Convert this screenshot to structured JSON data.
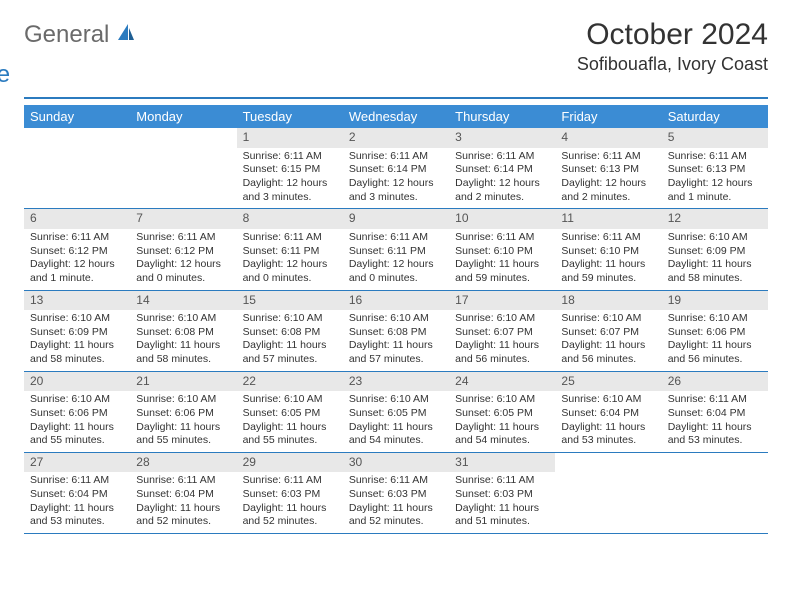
{
  "logo": {
    "word1": "General",
    "word2": "Blue"
  },
  "title": "October 2024",
  "location": "Sofibouafla, Ivory Coast",
  "colors": {
    "accent": "#3b8cd4",
    "divider": "#2b7bbf",
    "dayNumBg": "#e8e8e8",
    "text": "#333333",
    "logoGray": "#6a6a6a",
    "logoBlue": "#2b7bbf",
    "background": "#ffffff"
  },
  "dayNames": [
    "Sunday",
    "Monday",
    "Tuesday",
    "Wednesday",
    "Thursday",
    "Friday",
    "Saturday"
  ],
  "weeks": [
    [
      {
        "num": "",
        "sunrise": "",
        "sunset": "",
        "daylight": ""
      },
      {
        "num": "",
        "sunrise": "",
        "sunset": "",
        "daylight": ""
      },
      {
        "num": "1",
        "sunrise": "Sunrise: 6:11 AM",
        "sunset": "Sunset: 6:15 PM",
        "daylight": "Daylight: 12 hours and 3 minutes."
      },
      {
        "num": "2",
        "sunrise": "Sunrise: 6:11 AM",
        "sunset": "Sunset: 6:14 PM",
        "daylight": "Daylight: 12 hours and 3 minutes."
      },
      {
        "num": "3",
        "sunrise": "Sunrise: 6:11 AM",
        "sunset": "Sunset: 6:14 PM",
        "daylight": "Daylight: 12 hours and 2 minutes."
      },
      {
        "num": "4",
        "sunrise": "Sunrise: 6:11 AM",
        "sunset": "Sunset: 6:13 PM",
        "daylight": "Daylight: 12 hours and 2 minutes."
      },
      {
        "num": "5",
        "sunrise": "Sunrise: 6:11 AM",
        "sunset": "Sunset: 6:13 PM",
        "daylight": "Daylight: 12 hours and 1 minute."
      }
    ],
    [
      {
        "num": "6",
        "sunrise": "Sunrise: 6:11 AM",
        "sunset": "Sunset: 6:12 PM",
        "daylight": "Daylight: 12 hours and 1 minute."
      },
      {
        "num": "7",
        "sunrise": "Sunrise: 6:11 AM",
        "sunset": "Sunset: 6:12 PM",
        "daylight": "Daylight: 12 hours and 0 minutes."
      },
      {
        "num": "8",
        "sunrise": "Sunrise: 6:11 AM",
        "sunset": "Sunset: 6:11 PM",
        "daylight": "Daylight: 12 hours and 0 minutes."
      },
      {
        "num": "9",
        "sunrise": "Sunrise: 6:11 AM",
        "sunset": "Sunset: 6:11 PM",
        "daylight": "Daylight: 12 hours and 0 minutes."
      },
      {
        "num": "10",
        "sunrise": "Sunrise: 6:11 AM",
        "sunset": "Sunset: 6:10 PM",
        "daylight": "Daylight: 11 hours and 59 minutes."
      },
      {
        "num": "11",
        "sunrise": "Sunrise: 6:11 AM",
        "sunset": "Sunset: 6:10 PM",
        "daylight": "Daylight: 11 hours and 59 minutes."
      },
      {
        "num": "12",
        "sunrise": "Sunrise: 6:10 AM",
        "sunset": "Sunset: 6:09 PM",
        "daylight": "Daylight: 11 hours and 58 minutes."
      }
    ],
    [
      {
        "num": "13",
        "sunrise": "Sunrise: 6:10 AM",
        "sunset": "Sunset: 6:09 PM",
        "daylight": "Daylight: 11 hours and 58 minutes."
      },
      {
        "num": "14",
        "sunrise": "Sunrise: 6:10 AM",
        "sunset": "Sunset: 6:08 PM",
        "daylight": "Daylight: 11 hours and 58 minutes."
      },
      {
        "num": "15",
        "sunrise": "Sunrise: 6:10 AM",
        "sunset": "Sunset: 6:08 PM",
        "daylight": "Daylight: 11 hours and 57 minutes."
      },
      {
        "num": "16",
        "sunrise": "Sunrise: 6:10 AM",
        "sunset": "Sunset: 6:08 PM",
        "daylight": "Daylight: 11 hours and 57 minutes."
      },
      {
        "num": "17",
        "sunrise": "Sunrise: 6:10 AM",
        "sunset": "Sunset: 6:07 PM",
        "daylight": "Daylight: 11 hours and 56 minutes."
      },
      {
        "num": "18",
        "sunrise": "Sunrise: 6:10 AM",
        "sunset": "Sunset: 6:07 PM",
        "daylight": "Daylight: 11 hours and 56 minutes."
      },
      {
        "num": "19",
        "sunrise": "Sunrise: 6:10 AM",
        "sunset": "Sunset: 6:06 PM",
        "daylight": "Daylight: 11 hours and 56 minutes."
      }
    ],
    [
      {
        "num": "20",
        "sunrise": "Sunrise: 6:10 AM",
        "sunset": "Sunset: 6:06 PM",
        "daylight": "Daylight: 11 hours and 55 minutes."
      },
      {
        "num": "21",
        "sunrise": "Sunrise: 6:10 AM",
        "sunset": "Sunset: 6:06 PM",
        "daylight": "Daylight: 11 hours and 55 minutes."
      },
      {
        "num": "22",
        "sunrise": "Sunrise: 6:10 AM",
        "sunset": "Sunset: 6:05 PM",
        "daylight": "Daylight: 11 hours and 55 minutes."
      },
      {
        "num": "23",
        "sunrise": "Sunrise: 6:10 AM",
        "sunset": "Sunset: 6:05 PM",
        "daylight": "Daylight: 11 hours and 54 minutes."
      },
      {
        "num": "24",
        "sunrise": "Sunrise: 6:10 AM",
        "sunset": "Sunset: 6:05 PM",
        "daylight": "Daylight: 11 hours and 54 minutes."
      },
      {
        "num": "25",
        "sunrise": "Sunrise: 6:10 AM",
        "sunset": "Sunset: 6:04 PM",
        "daylight": "Daylight: 11 hours and 53 minutes."
      },
      {
        "num": "26",
        "sunrise": "Sunrise: 6:11 AM",
        "sunset": "Sunset: 6:04 PM",
        "daylight": "Daylight: 11 hours and 53 minutes."
      }
    ],
    [
      {
        "num": "27",
        "sunrise": "Sunrise: 6:11 AM",
        "sunset": "Sunset: 6:04 PM",
        "daylight": "Daylight: 11 hours and 53 minutes."
      },
      {
        "num": "28",
        "sunrise": "Sunrise: 6:11 AM",
        "sunset": "Sunset: 6:04 PM",
        "daylight": "Daylight: 11 hours and 52 minutes."
      },
      {
        "num": "29",
        "sunrise": "Sunrise: 6:11 AM",
        "sunset": "Sunset: 6:03 PM",
        "daylight": "Daylight: 11 hours and 52 minutes."
      },
      {
        "num": "30",
        "sunrise": "Sunrise: 6:11 AM",
        "sunset": "Sunset: 6:03 PM",
        "daylight": "Daylight: 11 hours and 52 minutes."
      },
      {
        "num": "31",
        "sunrise": "Sunrise: 6:11 AM",
        "sunset": "Sunset: 6:03 PM",
        "daylight": "Daylight: 11 hours and 51 minutes."
      },
      {
        "num": "",
        "sunrise": "",
        "sunset": "",
        "daylight": ""
      },
      {
        "num": "",
        "sunrise": "",
        "sunset": "",
        "daylight": ""
      }
    ]
  ]
}
